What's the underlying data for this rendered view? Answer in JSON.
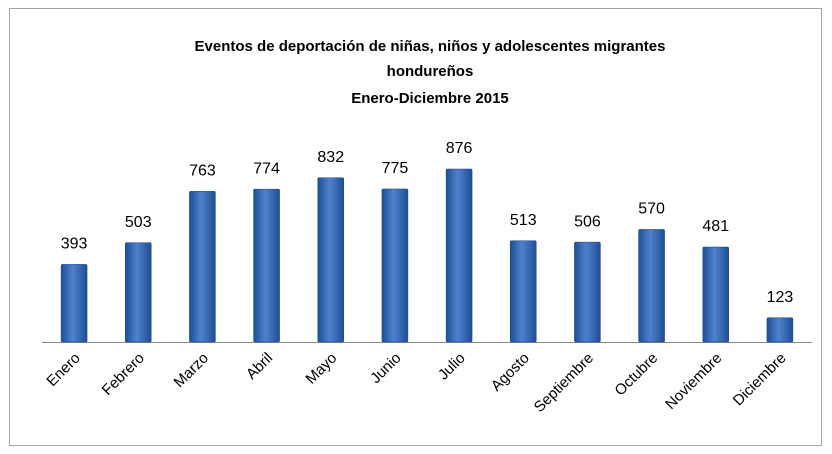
{
  "chart_data": {
    "type": "bar",
    "title": [
      "Eventos de deportación de niñas, niños y adolescentes migrantes",
      "hondureños",
      "Enero-Diciembre  2015"
    ],
    "categories": [
      "Enero",
      "Febrero",
      "Marzo",
      "Abril",
      "Mayo",
      "Junio",
      "Julio",
      "Agosto",
      "Septiembre",
      "Octubre",
      "Noviembre",
      "Diciembre"
    ],
    "values": [
      393,
      503,
      763,
      774,
      832,
      775,
      876,
      513,
      506,
      570,
      481,
      123
    ],
    "color": "#3a6ab8"
  }
}
